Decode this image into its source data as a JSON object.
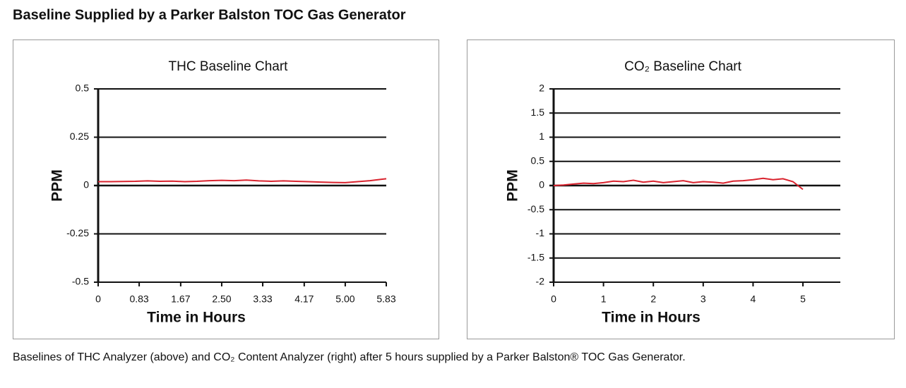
{
  "title": "Baseline Supplied by a Parker Balston TOC Gas Generator",
  "caption": "Baselines of THC Analyzer (above) and CO₂ Content Analyzer (right) after 5 hours supplied by a Parker Balston® TOC Gas Generator.",
  "chart_data": [
    {
      "type": "line",
      "title": "THC Baseline Chart",
      "xlabel": "Time in Hours",
      "ylabel": "PPM",
      "color": "#d9232e",
      "x": [
        0,
        0.25,
        0.5,
        0.75,
        1.0,
        1.25,
        1.5,
        1.75,
        2.0,
        2.25,
        2.5,
        2.75,
        3.0,
        3.25,
        3.5,
        3.75,
        4.0,
        4.25,
        4.5,
        4.75,
        5.0,
        5.25,
        5.5,
        5.75,
        5.83
      ],
      "values": [
        0.02,
        0.02,
        0.021,
        0.022,
        0.024,
        0.022,
        0.023,
        0.02,
        0.022,
        0.025,
        0.027,
        0.025,
        0.028,
        0.024,
        0.022,
        0.024,
        0.022,
        0.02,
        0.018,
        0.016,
        0.015,
        0.02,
        0.025,
        0.033,
        0.035
      ],
      "xlim": [
        0,
        5.83
      ],
      "xticks": [
        0,
        0.83,
        1.67,
        {
          "value": 2.5,
          "label": "2.50"
        },
        3.33,
        4.17,
        {
          "value": 5,
          "label": "5.00"
        },
        5.83
      ],
      "ylim": [
        -0.5,
        0.5
      ],
      "yticks": [
        0.5,
        0.25,
        0,
        -0.25,
        -0.5
      ],
      "grid": true
    },
    {
      "type": "line",
      "title": "CO₂ Baseline Chart",
      "xlabel": "Time in Hours",
      "ylabel": "PPM",
      "color": "#d9232e",
      "x": [
        0,
        0.2,
        0.4,
        0.6,
        0.8,
        1.0,
        1.2,
        1.4,
        1.6,
        1.8,
        2.0,
        2.2,
        2.4,
        2.6,
        2.8,
        3.0,
        3.2,
        3.4,
        3.6,
        3.8,
        4.0,
        4.2,
        4.4,
        4.6,
        4.8,
        5.0
      ],
      "values": [
        0,
        0.01,
        0.03,
        0.05,
        0.04,
        0.06,
        0.09,
        0.08,
        0.11,
        0.07,
        0.09,
        0.06,
        0.08,
        0.1,
        0.06,
        0.08,
        0.07,
        0.05,
        0.09,
        0.1,
        0.12,
        0.15,
        0.12,
        0.14,
        0.08,
        -0.08
      ],
      "xlim": [
        0,
        5.75
      ],
      "xticks": [
        0,
        1,
        2,
        3,
        4,
        5
      ],
      "ylim": [
        -2,
        2
      ],
      "yticks": [
        2,
        1.5,
        1,
        0.5,
        0,
        -0.5,
        -1,
        -1.5,
        -2
      ],
      "grid": true
    }
  ]
}
